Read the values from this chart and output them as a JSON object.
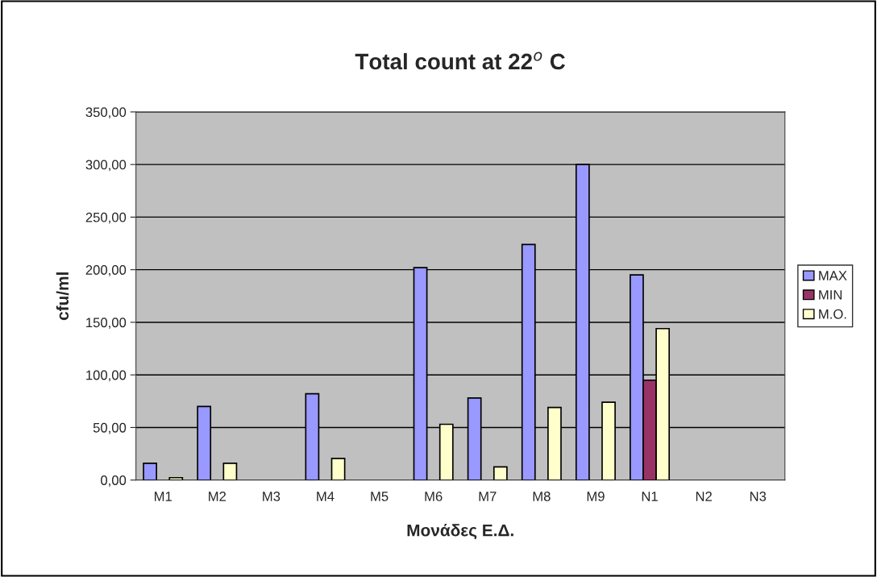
{
  "chart_data": {
    "type": "bar",
    "title": "Total count at 22$^{o}$ C",
    "xlabel": "Μονάδες Ε.Δ.",
    "ylabel": "cfu/ml",
    "categories": [
      "M1",
      "M2",
      "M3",
      "M4",
      "M5",
      "M6",
      "M7",
      "M8",
      "M9",
      "N1",
      "N2",
      "N3"
    ],
    "series": [
      {
        "name": "MAX",
        "color": "#9999ff",
        "values": [
          16,
          70,
          null,
          82,
          null,
          202,
          78,
          224,
          300,
          195,
          null,
          null
        ]
      },
      {
        "name": "MIN",
        "color": "#993366",
        "values": [
          null,
          null,
          null,
          null,
          null,
          null,
          null,
          null,
          null,
          95,
          null,
          null
        ]
      },
      {
        "name": "M.O.",
        "color": "#ffffcc",
        "values": [
          2.3,
          16,
          null,
          20.5,
          null,
          53,
          12.5,
          69,
          74,
          144,
          null,
          null
        ]
      }
    ],
    "ylim": [
      0,
      350
    ],
    "yticks": [
      {
        "value": 0,
        "label": "0,00"
      },
      {
        "value": 50,
        "label": "50,00"
      },
      {
        "value": 100,
        "label": "100,00"
      },
      {
        "value": 150,
        "label": "150,00"
      },
      {
        "value": 200,
        "label": "200,00"
      },
      {
        "value": 250,
        "label": "250,00"
      },
      {
        "value": 300,
        "label": "300,00"
      },
      {
        "value": 350,
        "label": "350,00"
      }
    ],
    "grid": "y",
    "legend": "right"
  }
}
